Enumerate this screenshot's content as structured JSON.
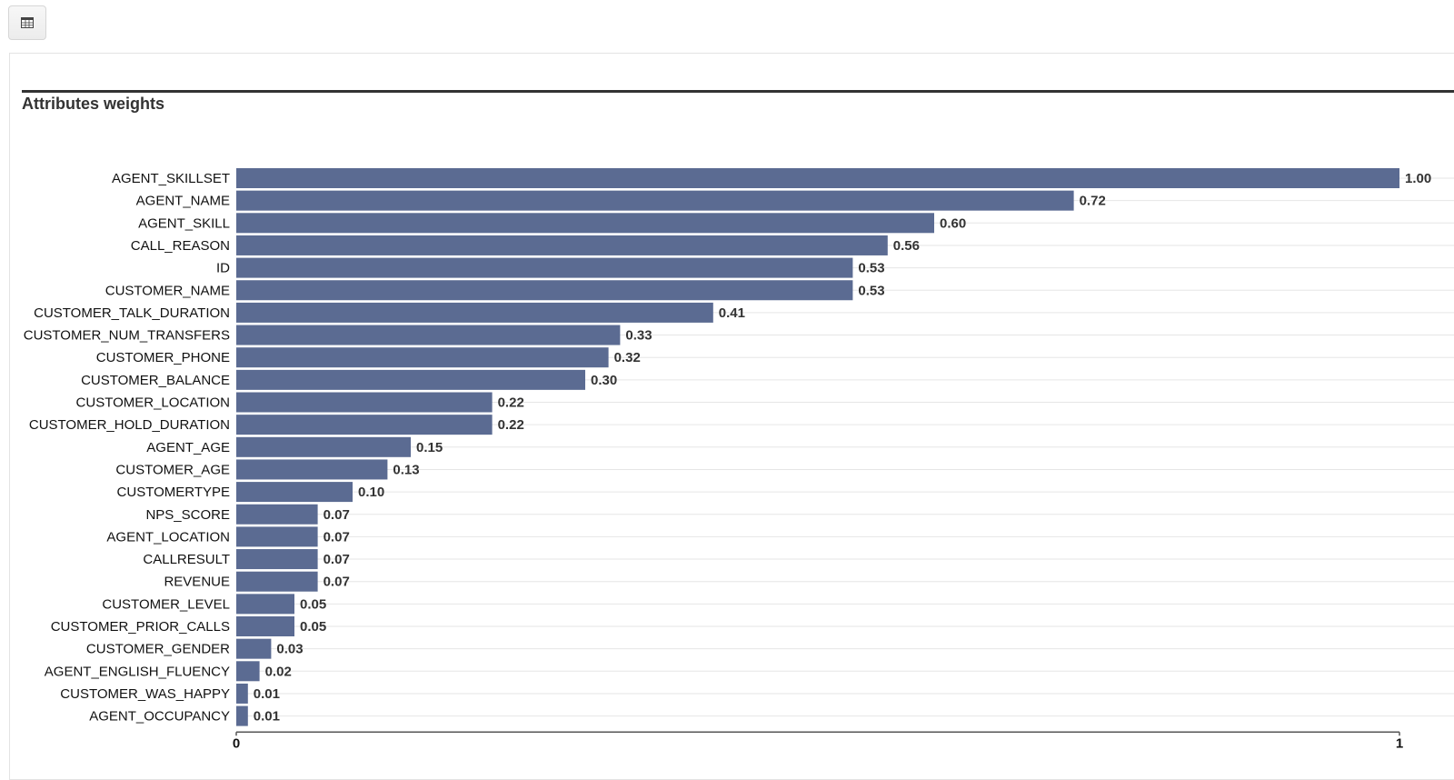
{
  "toolbar": {
    "icon": "table-icon"
  },
  "chart_data": {
    "type": "bar",
    "orientation": "horizontal",
    "title": "Attributes weights",
    "categories": [
      "AGENT_SKILLSET",
      "AGENT_NAME",
      "AGENT_SKILL",
      "CALL_REASON",
      "ID",
      "CUSTOMER_NAME",
      "CUSTOMER_TALK_DURATION",
      "CUSTOMER_NUM_TRANSFERS",
      "CUSTOMER_PHONE",
      "CUSTOMER_BALANCE",
      "CUSTOMER_LOCATION",
      "CUSTOMER_HOLD_DURATION",
      "AGENT_AGE",
      "CUSTOMER_AGE",
      "CUSTOMERTYPE",
      "NPS_SCORE",
      "AGENT_LOCATION",
      "CALLRESULT",
      "REVENUE",
      "CUSTOMER_LEVEL",
      "CUSTOMER_PRIOR_CALLS",
      "CUSTOMER_GENDER",
      "AGENT_ENGLISH_FLUENCY",
      "CUSTOMER_WAS_HAPPY",
      "AGENT_OCCUPANCY"
    ],
    "values": [
      1.0,
      0.72,
      0.6,
      0.56,
      0.53,
      0.53,
      0.41,
      0.33,
      0.32,
      0.3,
      0.22,
      0.22,
      0.15,
      0.13,
      0.1,
      0.07,
      0.07,
      0.07,
      0.07,
      0.05,
      0.05,
      0.03,
      0.02,
      0.01,
      0.01
    ],
    "value_labels": [
      "1.00",
      "0.72",
      "0.60",
      "0.56",
      "0.53",
      "0.53",
      "0.41",
      "0.33",
      "0.32",
      "0.30",
      "0.22",
      "0.22",
      "0.15",
      "0.13",
      "0.10",
      "0.07",
      "0.07",
      "0.07",
      "0.07",
      "0.05",
      "0.05",
      "0.03",
      "0.02",
      "0.01",
      "0.01"
    ],
    "xlim": [
      0,
      1
    ],
    "x_ticks": [
      "0",
      "1"
    ],
    "grid": true,
    "colors": {
      "bar": "#5b6b92",
      "grid": "#e6e6e6",
      "axis": "#555555"
    }
  }
}
